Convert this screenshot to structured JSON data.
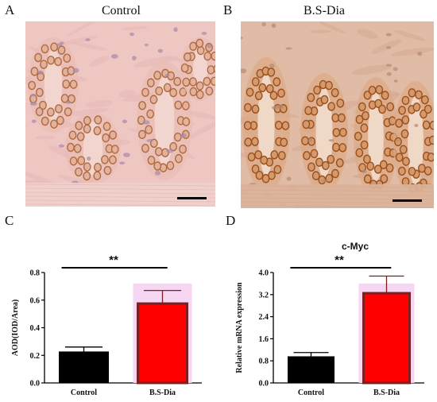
{
  "panels": {
    "a": {
      "letter": "A",
      "title": "Control"
    },
    "b": {
      "letter": "B",
      "title": "B.S-Dia"
    },
    "c": {
      "letter": "C"
    },
    "d": {
      "letter": "D"
    }
  },
  "colors": {
    "control_bar": "#000000",
    "treated_bar": "#ff0000",
    "treated_edge": "#7a2020",
    "highlight": "#f6d6f3",
    "tissue_a_bg": "#ecc4c0",
    "tissue_b_bg": "#dcb49e",
    "nucleus_brown": "#a4562a"
  },
  "chart_data": [
    {
      "type": "bar",
      "panel": "C",
      "title": "",
      "categories": [
        "Control",
        "B.S-Dia"
      ],
      "values": [
        0.225,
        0.575
      ],
      "errors": [
        0.035,
        0.095
      ],
      "ylabel": "AOD(IOD/Area)",
      "xlabel": "",
      "ylim": [
        0,
        0.8
      ],
      "yticks": [
        "0.0",
        "0.2",
        "0.4",
        "0.6",
        "0.8"
      ],
      "significance": "**",
      "grid": false
    },
    {
      "type": "bar",
      "panel": "D",
      "title": "c-Myc",
      "categories": [
        "Control",
        "B.S-Dia"
      ],
      "values": [
        0.95,
        3.25
      ],
      "errors": [
        0.15,
        0.62
      ],
      "ylabel": "Relative mRNA expression",
      "xlabel": "",
      "ylim": [
        0,
        4.0
      ],
      "yticks": [
        "0.0",
        "0.8",
        "1.6",
        "2.4",
        "3.2",
        "4.0"
      ],
      "significance": "**",
      "grid": false
    }
  ]
}
